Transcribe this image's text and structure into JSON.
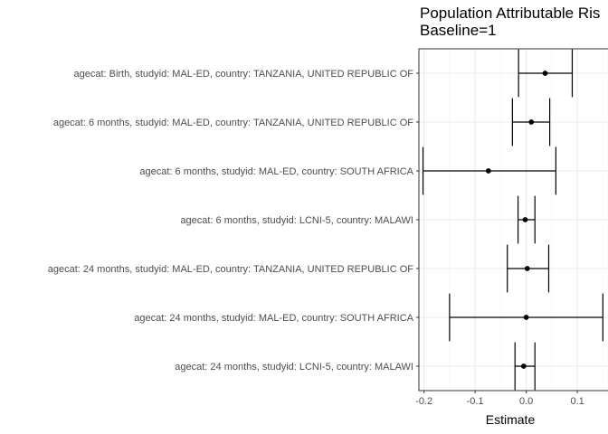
{
  "chart_data": {
    "type": "forest",
    "title_lines": [
      "Population Attributable Ris",
      "Baseline=1"
    ],
    "xlabel": "Estimate",
    "ylabel": "",
    "xlim": [
      -0.21,
      0.16
    ],
    "x_ticks": [
      -0.2,
      -0.1,
      0.0,
      0.1
    ],
    "x_tick_labels": [
      "-0.2",
      "-0.1",
      "0.0",
      "0.1"
    ],
    "grid": true,
    "categories": [
      "agecat: Birth, studyid: MAL-ED, country: TANZANIA, UNITED REPUBLIC OF",
      "agecat: 6 months, studyid: MAL-ED, country: TANZANIA, UNITED REPUBLIC OF",
      "agecat: 6 months, studyid: MAL-ED, country: SOUTH AFRICA",
      "agecat: 6 months, studyid: LCNI-5, country: MALAWI",
      "agecat: 24 months, studyid: MAL-ED, country: TANZANIA, UNITED REPUBLIC OF",
      "agecat: 24 months, studyid: MAL-ED, country: SOUTH AFRICA",
      "agecat: 24 months, studyid: LCNI-5, country: MALAWI"
    ],
    "estimates": [
      0.037,
      0.01,
      -0.074,
      -0.002,
      0.002,
      0.0,
      -0.005
    ],
    "ci_lower": [
      -0.015,
      -0.027,
      -0.202,
      -0.016,
      -0.037,
      -0.15,
      -0.022
    ],
    "ci_upper": [
      0.09,
      0.046,
      0.058,
      0.017,
      0.044,
      0.15,
      0.017
    ],
    "colors": {
      "point": "#000000",
      "errorbar": "#000000",
      "grid_major": "#ebebeb",
      "grid_minor": "#f5f5f5",
      "panel_border": "#333333"
    }
  }
}
